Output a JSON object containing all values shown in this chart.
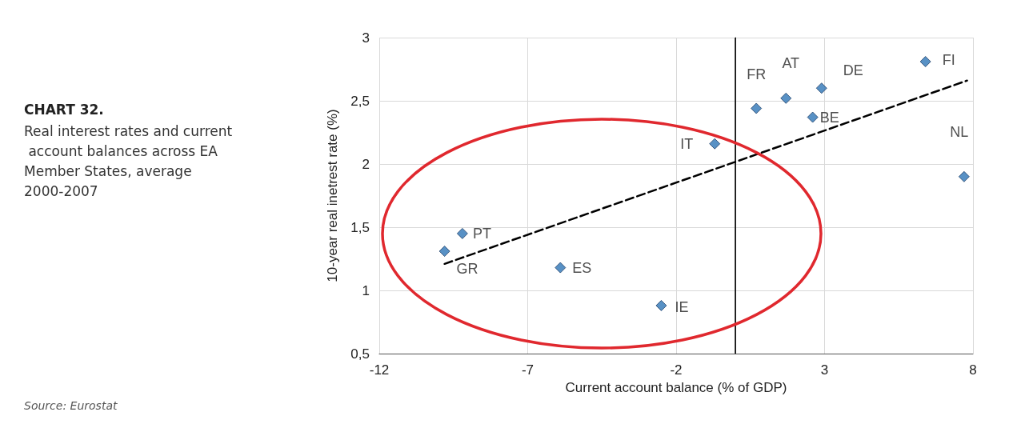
{
  "chart_data": {
    "type": "scatter",
    "title": "CHART 32.",
    "subtitle": "Real interest rates and current account balances across EA Member States, average 2000-2007",
    "xlabel": "Current account balance (% of GDP)",
    "ylabel": "10-year real inetrest rate (%)",
    "x": [
      -9.2,
      -9.8,
      -5.9,
      -2.5,
      -0.7,
      0.7,
      1.7,
      2.9,
      2.6,
      6.4,
      7.7
    ],
    "series": [
      {
        "color": "#2e75b6",
        "marker": "diamond",
        "values": [
          1.45,
          1.31,
          1.18,
          0.88,
          2.16,
          2.44,
          2.52,
          2.6,
          2.37,
          2.81,
          1.9
        ]
      },
      {
        "type": "line",
        "color": "#000000",
        "line_style": "dashed",
        "marker": "none",
        "x": [
          -9.8,
          7.8
        ],
        "values": [
          1.21,
          2.66
        ]
      }
    ],
    "xlim": [
      -12,
      8
    ],
    "xticks": [
      -12,
      -7,
      -2,
      3,
      8
    ],
    "ylim": [
      0.5,
      3
    ],
    "yticks": [
      {
        "value": 0.5,
        "label": "0,5"
      },
      1,
      {
        "value": 1.5,
        "label": "1,5"
      },
      2,
      {
        "value": 2.5,
        "label": "2,5"
      },
      3
    ],
    "grid": true,
    "ref_lines": [
      {
        "axis": "x",
        "value": 0,
        "color": "#000000"
      }
    ],
    "annotations": [
      {
        "text": "PT",
        "x": -9.2,
        "y": 1.45
      },
      {
        "text": "GR",
        "x": -9.8,
        "y": 1.31
      },
      {
        "text": "ES",
        "x": -5.9,
        "y": 1.18
      },
      {
        "text": "IE",
        "x": -2.5,
        "y": 0.88
      },
      {
        "text": "IT",
        "x": -0.7,
        "y": 2.16
      },
      {
        "text": "FR",
        "x": 0.7,
        "y": 2.44
      },
      {
        "text": "AT",
        "x": 1.7,
        "y": 2.52
      },
      {
        "text": "DE",
        "x": 2.9,
        "y": 2.6
      },
      {
        "text": "BE",
        "x": 2.6,
        "y": 2.37
      },
      {
        "text": "FI",
        "x": 6.4,
        "y": 2.81
      },
      {
        "text": "NL",
        "x": 7.7,
        "y": 1.9
      },
      "Source: Eurostat"
    ]
  }
}
